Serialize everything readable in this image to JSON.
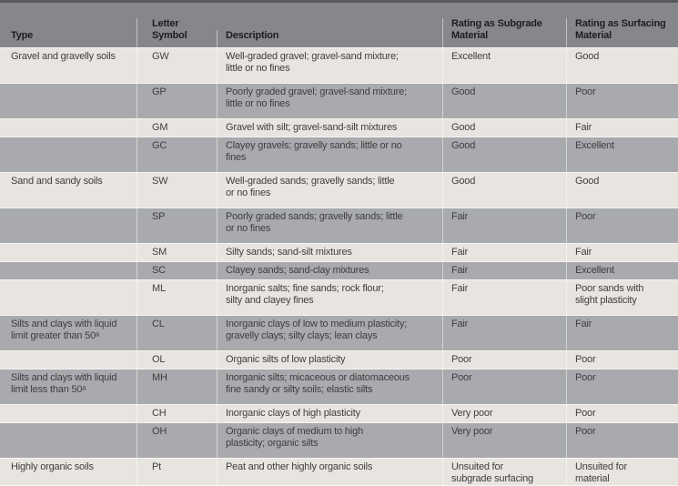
{
  "colors": {
    "border-dark": "#58595b",
    "header-bg": "#85878a",
    "header-text": "#1d1d1f",
    "row-light": "#e8e5e0",
    "row-dark": "#a8aaad",
    "body-text": "#3e3e41",
    "separator": "#f7f5f1"
  },
  "table": {
    "columns": [
      {
        "lines": [
          "Type"
        ]
      },
      {
        "lines": [
          "Letter",
          "Symbol"
        ]
      },
      {
        "lines": [
          "Description"
        ]
      },
      {
        "lines": [
          "Rating as Subgrade",
          "Material"
        ]
      },
      {
        "lines": [
          "Rating as Surfacing",
          "Material"
        ]
      }
    ],
    "rows": [
      {
        "shade": "light",
        "type": [
          "Gravel and gravelly soils"
        ],
        "symbol": [
          "GW"
        ],
        "desc": [
          "Well-graded gravel; gravel-sand mixture;",
          "little or no fines"
        ],
        "subgrade": [
          "Excellent"
        ],
        "surfacing": [
          "Good"
        ]
      },
      {
        "shade": "dark",
        "type": [],
        "symbol": [
          "GP"
        ],
        "desc": [
          "Poorly graded gravel; gravel-sand mixture;",
          "little or no fines"
        ],
        "subgrade": [
          "Good"
        ],
        "surfacing": [
          "Poor"
        ]
      },
      {
        "shade": "light",
        "type": [],
        "symbol": [
          "GM"
        ],
        "desc": [
          "Gravel with silt; gravel-sand-silt mixtures"
        ],
        "subgrade": [
          "Good"
        ],
        "surfacing": [
          "Fair"
        ]
      },
      {
        "shade": "dark",
        "type": [],
        "symbol": [
          "GC"
        ],
        "desc": [
          "Clayey gravels; gravelly sands; little or no",
          "fines"
        ],
        "subgrade": [
          "Good"
        ],
        "surfacing": [
          "Excellent"
        ]
      },
      {
        "shade": "light",
        "type": [
          "Sand and sandy soils"
        ],
        "symbol": [
          "SW"
        ],
        "desc": [
          "Well-graded sands; gravelly sands; little",
          "or no fines"
        ],
        "subgrade": [
          "Good"
        ],
        "surfacing": [
          "Good"
        ]
      },
      {
        "shade": "dark",
        "type": [],
        "symbol": [
          "SP"
        ],
        "desc": [
          "Poorly graded sands; gravelly sands; little",
          "or no fines"
        ],
        "subgrade": [
          "Fair"
        ],
        "surfacing": [
          "Poor"
        ]
      },
      {
        "shade": "light",
        "type": [],
        "symbol": [
          "SM"
        ],
        "desc": [
          "Silty sands; sand-silt mixtures"
        ],
        "subgrade": [
          "Fair"
        ],
        "surfacing": [
          "Fair"
        ]
      },
      {
        "shade": "dark",
        "type": [],
        "symbol": [
          "SC"
        ],
        "desc": [
          "Clayey sands; sand-clay mixtures"
        ],
        "subgrade": [
          "Fair"
        ],
        "surfacing": [
          "Excellent"
        ]
      },
      {
        "shade": "light",
        "type": [],
        "symbol": [
          "ML"
        ],
        "desc": [
          "Inorganic salts; fine sands; rock flour;",
          "silty and clayey fines"
        ],
        "subgrade": [
          "Fair"
        ],
        "surfacing": [
          "Poor sands with",
          "slight plasticity"
        ]
      },
      {
        "shade": "dark",
        "type": [
          "Silts and clays with liquid",
          "limit greater than 50ᵃ"
        ],
        "symbol": [
          "CL"
        ],
        "desc": [
          "Inorganic clays of low to medium plasticity;",
          "gravelly clays; silty clays; lean clays"
        ],
        "subgrade": [
          "Fair"
        ],
        "surfacing": [
          "Fair"
        ]
      },
      {
        "shade": "light",
        "type": [],
        "symbol": [
          "OL"
        ],
        "desc": [
          "Organic silts of low plasticity"
        ],
        "subgrade": [
          "Poor"
        ],
        "surfacing": [
          "Poor"
        ]
      },
      {
        "shade": "dark",
        "type": [
          "Silts and clays with liquid",
          "limit less than 50ᵃ"
        ],
        "symbol": [
          "MH"
        ],
        "desc": [
          "Inorganic silts; micaceous or diatomaceous",
          "fine sandy or silty soils; elastic silts"
        ],
        "subgrade": [
          "Poor"
        ],
        "surfacing": [
          "Poor"
        ]
      },
      {
        "shade": "light",
        "type": [],
        "symbol": [
          "CH"
        ],
        "desc": [
          "Inorganic clays of high plasticity"
        ],
        "subgrade": [
          "Very poor"
        ],
        "surfacing": [
          "Poor"
        ]
      },
      {
        "shade": "dark",
        "type": [],
        "symbol": [
          "OH"
        ],
        "desc": [
          "Organic clays of medium to high",
          "plasticity; organic silts"
        ],
        "subgrade": [
          "Very poor"
        ],
        "surfacing": [
          "Poor"
        ]
      },
      {
        "shade": "light",
        "type": [
          "Highly organic soils"
        ],
        "symbol": [
          "Pt"
        ],
        "desc": [
          "Peat and other highly organic soils"
        ],
        "subgrade": [
          "Unsuited for",
          "subgrade surfacing"
        ],
        "surfacing": [
          "Unsuited for",
          "material"
        ]
      }
    ]
  }
}
